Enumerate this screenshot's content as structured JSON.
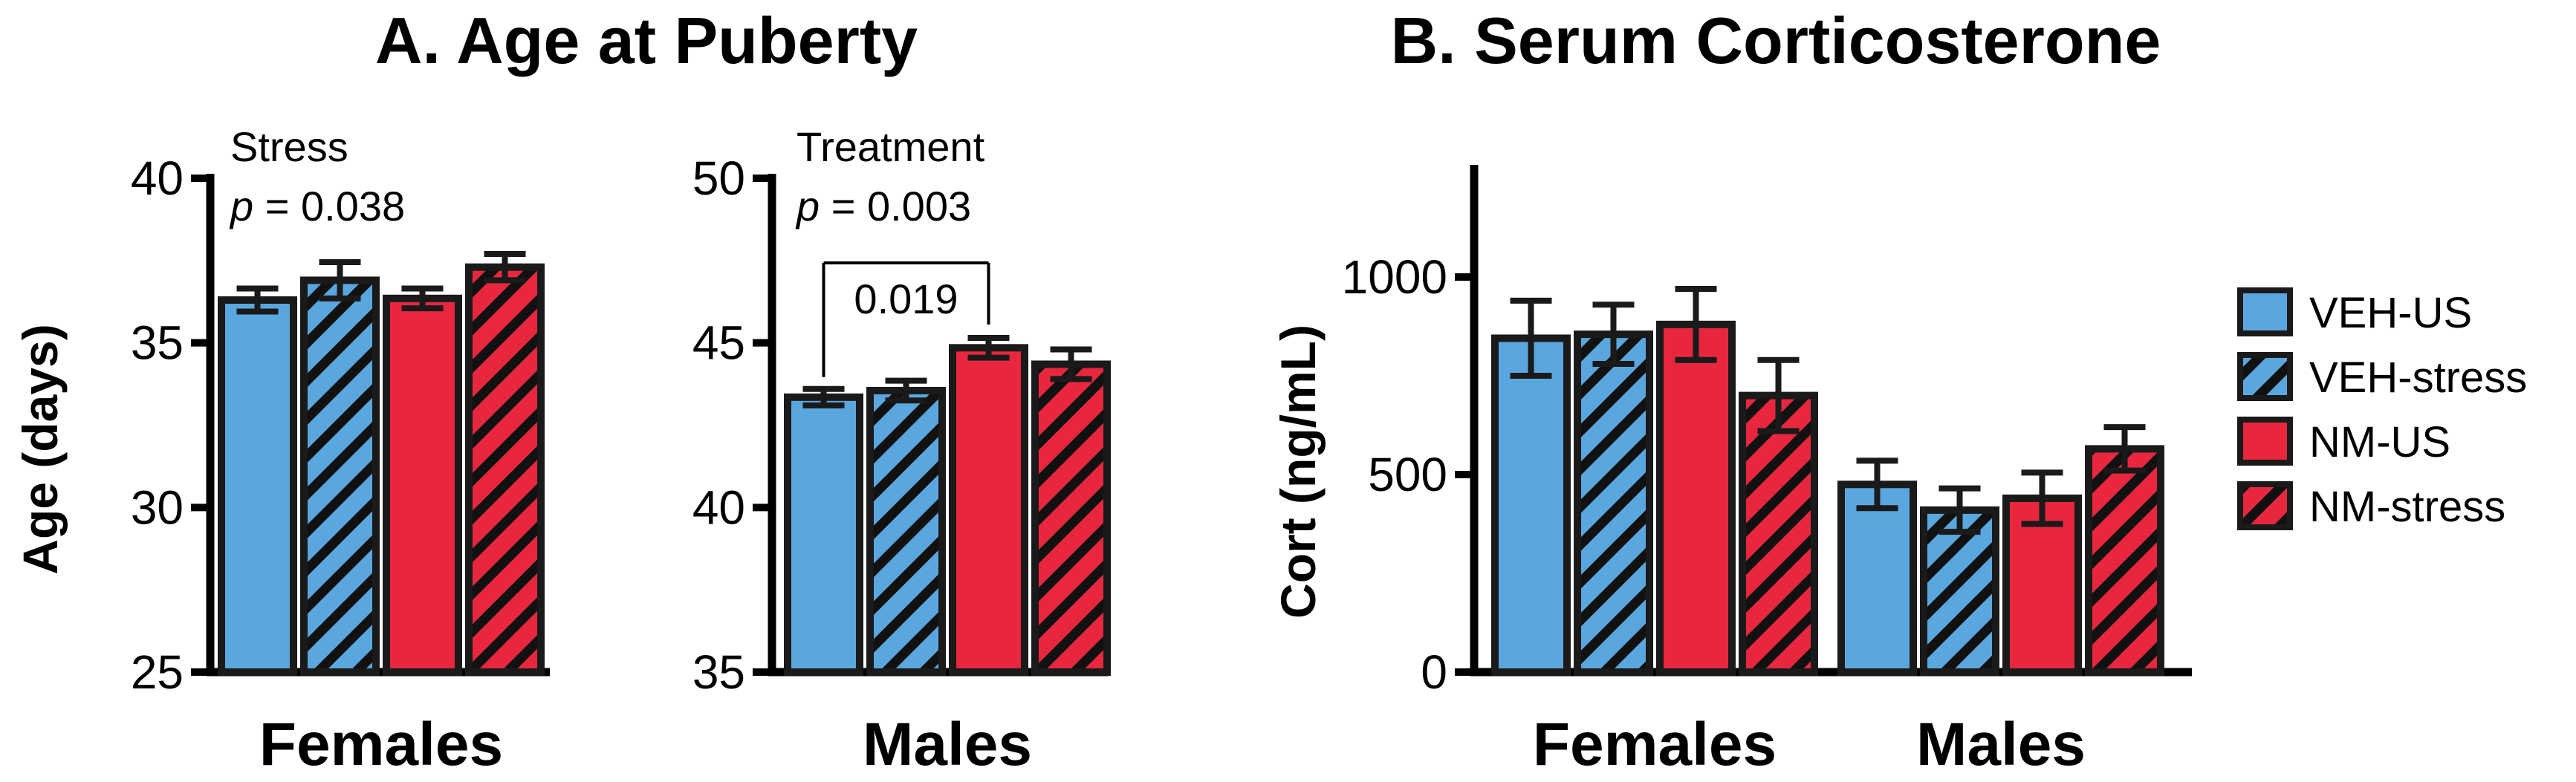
{
  "colors": {
    "veh": "#5aa7df",
    "nm": "#e8273f",
    "stroke": "#1a1a1a",
    "hatch": "#111111"
  },
  "legend": [
    {
      "label": "VEH-US",
      "color": "veh",
      "hatched": false
    },
    {
      "label": "VEH-stress",
      "color": "veh",
      "hatched": true
    },
    {
      "label": "NM-US",
      "color": "nm",
      "hatched": false
    },
    {
      "label": "NM-stress",
      "color": "nm",
      "hatched": true
    }
  ],
  "titles": {
    "a": "A. Age at Puberty",
    "b": "B. Serum Corticosterone"
  },
  "chart_data": [
    {
      "type": "bar",
      "panel": "A",
      "subpanel": "Females",
      "xlabel": "Females",
      "ylabel": "Age (days)",
      "ylim": [
        25,
        40
      ],
      "yticks": [
        "25",
        "30",
        "35",
        "40"
      ],
      "series": [
        {
          "name": "VEH-US",
          "values": [
            36.3
          ],
          "errors": [
            0.35
          ]
        },
        {
          "name": "VEH-stress",
          "values": [
            36.9
          ],
          "errors": [
            0.55
          ]
        },
        {
          "name": "NM-US",
          "values": [
            36.35
          ],
          "errors": [
            0.3
          ]
        },
        {
          "name": "NM-stress",
          "values": [
            37.3
          ],
          "errors": [
            0.4
          ]
        }
      ],
      "annotations": [
        {
          "text": "Stress",
          "italic": false
        },
        {
          "text": "p = 0.038",
          "italic_prefix": "p"
        }
      ]
    },
    {
      "type": "bar",
      "panel": "A",
      "subpanel": "Males",
      "xlabel": "Males",
      "ylim": [
        35,
        50
      ],
      "yticks": [
        "35",
        "40",
        "45",
        "50"
      ],
      "series": [
        {
          "name": "VEH-US",
          "values": [
            43.35
          ],
          "errors": [
            0.25
          ]
        },
        {
          "name": "VEH-stress",
          "values": [
            43.55
          ],
          "errors": [
            0.3
          ]
        },
        {
          "name": "NM-US",
          "values": [
            44.85
          ],
          "errors": [
            0.3
          ]
        },
        {
          "name": "NM-stress",
          "values": [
            44.35
          ],
          "errors": [
            0.45
          ]
        }
      ],
      "annotations": [
        {
          "text": "Treatment"
        },
        {
          "text": "p = 0.003",
          "italic_prefix": "p"
        }
      ],
      "comparison": {
        "from": "VEH-US",
        "to": "NM-US",
        "label": "0.019"
      }
    },
    {
      "type": "bar",
      "panel": "B",
      "ylabel": "Cort (ng/mL)",
      "ylim": [
        0,
        1250
      ],
      "yticks": [
        "0",
        "500",
        "1000"
      ],
      "categories": [
        "Females",
        "Males"
      ],
      "series": [
        {
          "name": "VEH-US",
          "values": [
            845,
            475
          ],
          "errors": [
            95,
            60
          ]
        },
        {
          "name": "VEH-stress",
          "values": [
            855,
            410
          ],
          "errors": [
            75,
            55
          ]
        },
        {
          "name": "NM-US",
          "values": [
            880,
            440
          ],
          "errors": [
            90,
            65
          ]
        },
        {
          "name": "NM-stress",
          "values": [
            700,
            565
          ],
          "errors": [
            90,
            55
          ]
        }
      ]
    }
  ]
}
